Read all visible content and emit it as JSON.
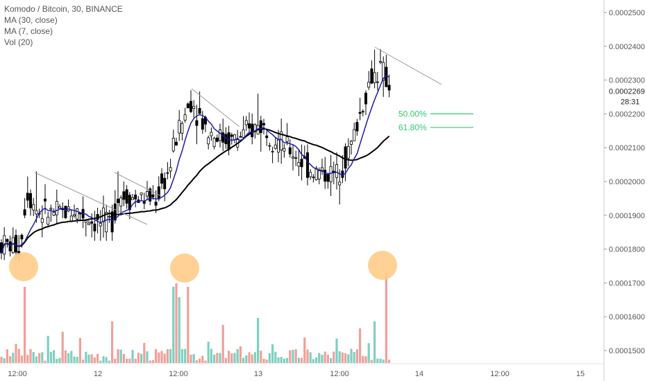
{
  "chart_data": {
    "type": "candlestick",
    "title": "Komodo / Bitcoin, 30, BINANCE",
    "legend": [
      "MA (30, close)",
      "MA (7, close)",
      "Vol (20)"
    ],
    "y_ticks": [
      "0.0002500",
      "0.0002400",
      "0.0002300",
      "0.0002200",
      "0.0002100",
      "0.0002000",
      "0.0001900",
      "0.0001800",
      "0.0001700",
      "0.0001600",
      "0.0001500"
    ],
    "y_range": [
      0.000146,
      0.000254
    ],
    "x_ticks": [
      "12:00",
      "12",
      "12:00",
      "13",
      "12:00",
      "14",
      "12:00",
      "15"
    ],
    "last_price": "0.0002269",
    "countdown": "28:31",
    "fib_levels": [
      {
        "label": "50.00%",
        "value": 0.00022
      },
      {
        "label": "61.80%",
        "value": 0.000216
      }
    ],
    "colors": {
      "ma7": "#1a1aa8",
      "ma30": "#000000",
      "vol_up": "#7fcfc0",
      "vol_down": "#f0a09a",
      "fib": "#2ecc71",
      "marker": "#ffcc88",
      "trendline": "#999999"
    }
  }
}
